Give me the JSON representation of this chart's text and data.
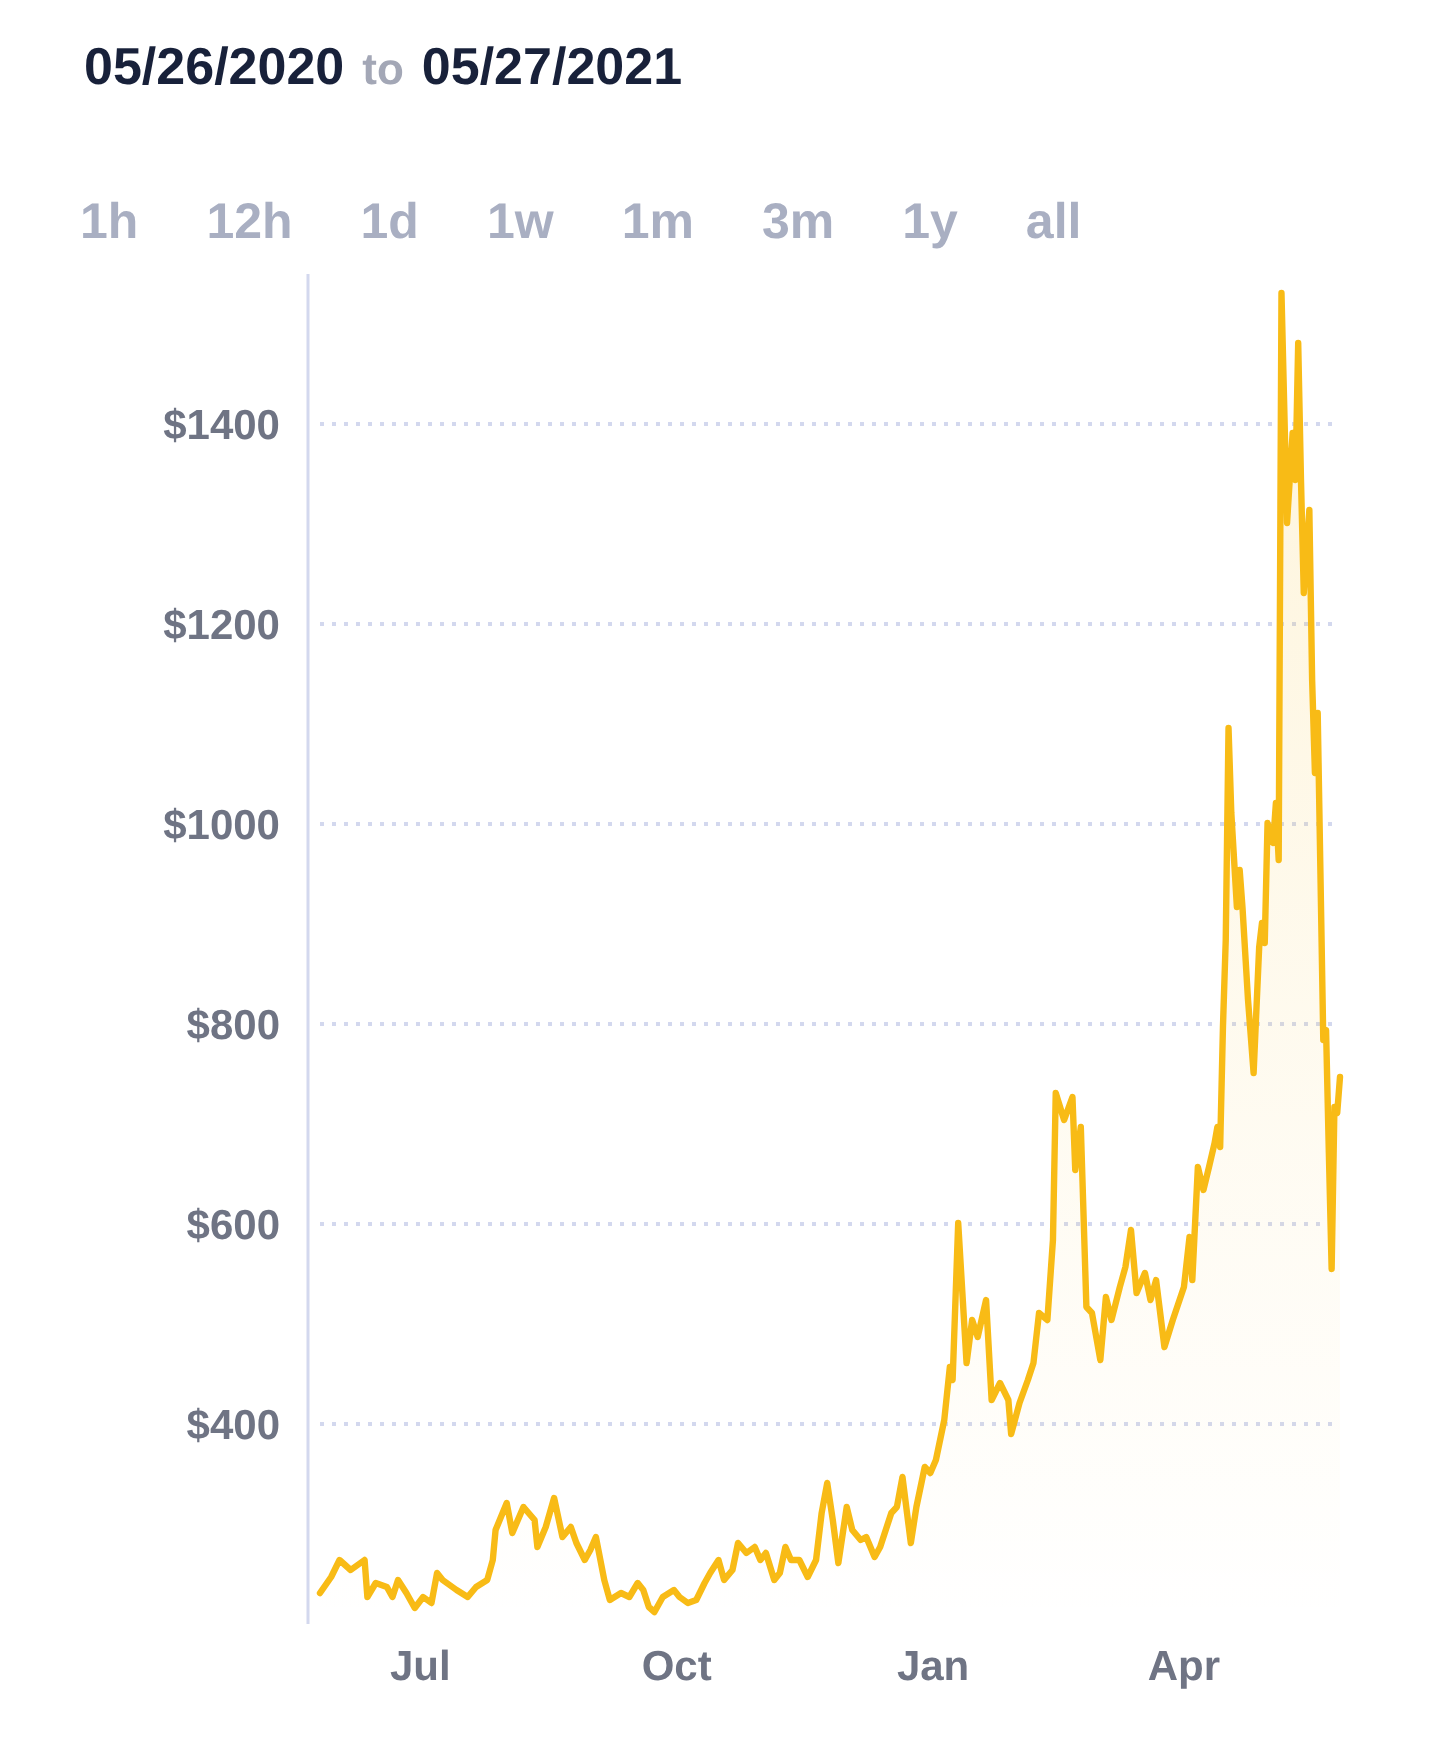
{
  "chart_data": {
    "type": "area",
    "title": "05/26/2020 to 05/27/2021",
    "annotations": [
      "1h",
      "12h",
      "1d",
      "1w",
      "1m",
      "3m",
      "1y",
      "all"
    ],
    "color": "#f8bb16",
    "x": [
      "2020-05-26",
      "2020-05-30",
      "2020-06-02",
      "2020-06-06",
      "2020-06-11",
      "2020-06-12",
      "2020-06-15",
      "2020-06-19",
      "2020-06-21",
      "2020-06-23",
      "2020-06-26",
      "2020-06-29",
      "2020-07-02",
      "2020-07-05",
      "2020-07-07",
      "2020-07-09",
      "2020-07-14",
      "2020-07-18",
      "2020-07-21",
      "2020-07-25",
      "2020-07-27",
      "2020-07-28",
      "2020-08-01",
      "2020-08-03",
      "2020-08-07",
      "2020-08-11",
      "2020-08-12",
      "2020-08-15",
      "2020-08-18",
      "2020-08-21",
      "2020-08-24",
      "2020-08-26",
      "2020-08-29",
      "2020-08-31",
      "2020-09-02",
      "2020-09-05",
      "2020-09-07",
      "2020-09-11",
      "2020-09-14",
      "2020-09-17",
      "2020-09-19",
      "2020-09-21",
      "2020-09-23",
      "2020-09-26",
      "2020-09-30",
      "2020-10-02",
      "2020-10-05",
      "2020-10-08",
      "2020-10-11",
      "2020-10-13",
      "2020-10-16",
      "2020-10-18",
      "2020-10-21",
      "2020-10-23",
      "2020-10-26",
      "2020-10-29",
      "2020-10-31",
      "2020-11-02",
      "2020-11-05",
      "2020-11-07",
      "2020-11-09",
      "2020-11-11",
      "2020-11-14",
      "2020-11-17",
      "2020-11-20",
      "2020-11-22",
      "2020-11-24",
      "2020-11-26",
      "2020-11-28",
      "2020-12-01",
      "2020-12-03",
      "2020-12-06",
      "2020-12-08",
      "2020-12-11",
      "2020-12-13",
      "2020-12-17",
      "2020-12-19",
      "2020-12-21",
      "2020-12-24",
      "2020-12-26",
      "2020-12-29",
      "2020-12-31",
      "2021-01-02",
      "2021-01-05",
      "2021-01-07",
      "2021-01-08",
      "2021-01-10",
      "2021-01-13",
      "2021-01-15",
      "2021-01-17",
      "2021-01-20",
      "2021-01-22",
      "2021-01-25",
      "2021-01-28",
      "2021-01-29",
      "2021-02-01",
      "2021-02-04",
      "2021-02-06",
      "2021-02-08",
      "2021-02-11",
      "2021-02-13",
      "2021-02-14",
      "2021-02-17",
      "2021-02-20",
      "2021-02-21",
      "2021-02-23",
      "2021-02-25",
      "2021-02-27",
      "2021-03-02",
      "2021-03-04",
      "2021-03-06",
      "2021-03-09",
      "2021-03-11",
      "2021-03-13",
      "2021-03-15",
      "2021-03-18",
      "2021-03-20",
      "2021-03-22",
      "2021-03-25",
      "2021-03-28",
      "2021-04-01",
      "2021-04-03",
      "2021-04-04",
      "2021-04-06",
      "2021-04-08",
      "2021-04-10",
      "2021-04-12",
      "2021-04-13",
      "2021-04-14",
      "2021-04-15",
      "2021-04-16",
      "2021-04-17",
      "2021-04-18",
      "2021-04-20",
      "2021-04-21",
      "2021-04-22",
      "2021-04-24",
      "2021-04-26",
      "2021-04-28",
      "2021-04-29",
      "2021-04-30",
      "2021-05-01",
      "2021-05-03",
      "2021-05-04",
      "2021-05-05",
      "2021-05-06",
      "2021-05-08",
      "2021-05-10",
      "2021-05-11",
      "2021-05-12",
      "2021-05-13",
      "2021-05-14",
      "2021-05-16",
      "2021-05-17",
      "2021-05-18",
      "2021-05-19",
      "2021-05-21",
      "2021-05-22",
      "2021-05-23",
      "2021-05-24",
      "2021-05-25",
      "2021-05-26",
      "2021-05-27"
    ],
    "values": [
      231,
      247,
      264,
      254,
      264,
      227,
      241,
      237,
      227,
      244,
      231,
      216,
      227,
      221,
      251,
      244,
      234,
      227,
      237,
      244,
      264,
      294,
      321,
      291,
      317,
      304,
      277,
      297,
      326,
      287,
      297,
      281,
      264,
      274,
      287,
      244,
      224,
      231,
      227,
      241,
      234,
      217,
      212,
      227,
      234,
      227,
      221,
      224,
      241,
      251,
      264,
      244,
      254,
      281,
      271,
      277,
      264,
      271,
      244,
      251,
      277,
      264,
      264,
      247,
      264,
      311,
      341,
      304,
      261,
      317,
      294,
      284,
      287,
      267,
      277,
      311,
      317,
      347,
      281,
      317,
      357,
      351,
      364,
      404,
      457,
      444,
      601,
      461,
      504,
      487,
      524,
      424,
      441,
      424,
      390,
      421,
      444,
      461,
      511,
      504,
      584,
      731,
      704,
      727,
      654,
      697,
      517,
      511,
      464,
      527,
      504,
      537,
      557,
      594,
      531,
      551,
      524,
      544,
      477,
      504,
      537,
      587,
      544,
      657,
      634,
      657,
      681,
      697,
      677,
      797,
      884,
      1096,
      1011,
      917,
      954,
      917,
      824,
      751,
      877,
      901,
      881,
      1001,
      981,
      1021,
      964,
      1531,
      1301,
      1391,
      1344,
      1481,
      1344,
      1231,
      1314,
      1144,
      1051,
      1111,
      784,
      794,
      671,
      555,
      717,
      711,
      747
    ],
    "xlim": [
      "2020-05-26",
      "2021-05-27"
    ],
    "ylim": [
      200,
      1550
    ],
    "xticks": [
      {
        "value": "2020-07-01",
        "label": "Jul"
      },
      {
        "value": "2020-10-01",
        "label": "Oct"
      },
      {
        "value": "2021-01-01",
        "label": "Jan"
      },
      {
        "value": "2021-04-01",
        "label": "Apr"
      }
    ],
    "yticks": [
      {
        "value": 400,
        "label": "$400"
      },
      {
        "value": 600,
        "label": "$600"
      },
      {
        "value": 800,
        "label": "$800"
      },
      {
        "value": 1000,
        "label": "$1000"
      },
      {
        "value": 1200,
        "label": "$1200"
      },
      {
        "value": 1400,
        "label": "$1400"
      }
    ],
    "grid": "y"
  }
}
